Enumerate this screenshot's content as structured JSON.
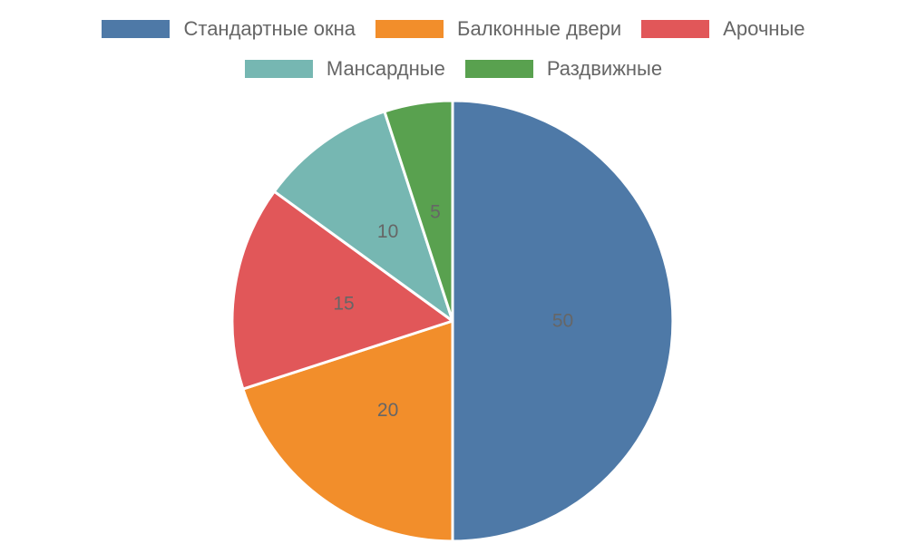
{
  "chart_data": {
    "type": "pie",
    "categories": [
      "Стандартные окна",
      "Балконные двери",
      "Арочные",
      "Мансардные",
      "Раздвижные"
    ],
    "values": [
      50,
      20,
      15,
      10,
      5
    ],
    "colors": [
      "#4e79a7",
      "#f28e2b",
      "#e15759",
      "#76b7b2",
      "#59a14f"
    ],
    "data_labels": [
      "50",
      "20",
      "15",
      "10",
      "5"
    ],
    "start_angle": "top",
    "direction": "clockwise",
    "legend_placement": "top"
  }
}
